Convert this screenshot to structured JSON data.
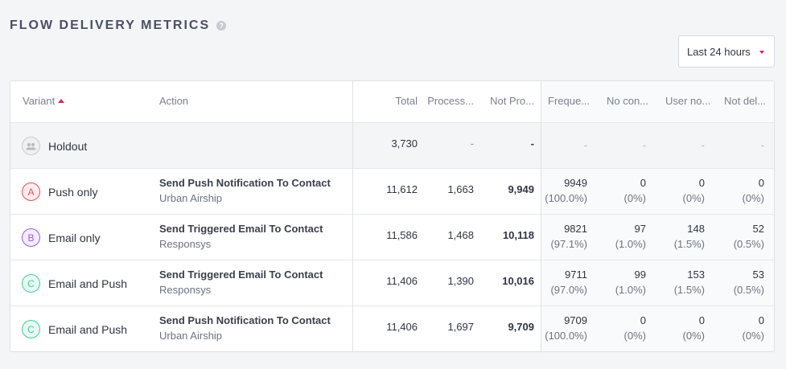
{
  "header": {
    "title": "FLOW DELIVERY METRICS",
    "help_icon": "?"
  },
  "time_range": {
    "selected": "Last 24 hours"
  },
  "columns": {
    "variant": "Variant",
    "action": "Action",
    "total": "Total",
    "processed": "Process...",
    "not_processed": "Not Pro...",
    "frequency": "Freque...",
    "no_contact": "No con...",
    "user_not": "User no...",
    "not_delivered": "Not del..."
  },
  "rows": [
    {
      "badge": "holdout",
      "variant": "Holdout",
      "action_title": "",
      "action_sub": "",
      "total": "3,730",
      "processed": "-",
      "not_processed": "-",
      "m1": {
        "v": "-",
        "p": ""
      },
      "m2": {
        "v": "-",
        "p": ""
      },
      "m3": {
        "v": "-",
        "p": ""
      },
      "m4": {
        "v": "-",
        "p": ""
      }
    },
    {
      "badge": "A",
      "variant": "Push only",
      "action_title": "Send Push Notification To Contact",
      "action_sub": "Urban Airship",
      "total": "11,612",
      "processed": "1,663",
      "not_processed": "9,949",
      "m1": {
        "v": "9949",
        "p": "(100.0%)"
      },
      "m2": {
        "v": "0",
        "p": "(0%)"
      },
      "m3": {
        "v": "0",
        "p": "(0%)"
      },
      "m4": {
        "v": "0",
        "p": "(0%)"
      }
    },
    {
      "badge": "B",
      "variant": "Email only",
      "action_title": "Send Triggered Email To Contact",
      "action_sub": "Responsys",
      "total": "11,586",
      "processed": "1,468",
      "not_processed": "10,118",
      "m1": {
        "v": "9821",
        "p": "(97.1%)"
      },
      "m2": {
        "v": "97",
        "p": "(1.0%)"
      },
      "m3": {
        "v": "148",
        "p": "(1.5%)"
      },
      "m4": {
        "v": "52",
        "p": "(0.5%)"
      }
    },
    {
      "badge": "C",
      "variant": "Email and Push",
      "action_title": "Send Triggered Email To Contact",
      "action_sub": "Responsys",
      "total": "11,406",
      "processed": "1,390",
      "not_processed": "10,016",
      "m1": {
        "v": "9711",
        "p": "(97.0%)"
      },
      "m2": {
        "v": "99",
        "p": "(1.0%)"
      },
      "m3": {
        "v": "153",
        "p": "(1.5%)"
      },
      "m4": {
        "v": "53",
        "p": "(0.5%)"
      }
    },
    {
      "badge": "C",
      "variant": "Email and Push",
      "action_title": "Send Push Notification To Contact",
      "action_sub": "Urban Airship",
      "total": "11,406",
      "processed": "1,697",
      "not_processed": "9,709",
      "m1": {
        "v": "9709",
        "p": "(100.0%)"
      },
      "m2": {
        "v": "0",
        "p": "(0%)"
      },
      "m3": {
        "v": "0",
        "p": "(0%)"
      },
      "m4": {
        "v": "0",
        "p": "(0%)"
      }
    }
  ]
}
